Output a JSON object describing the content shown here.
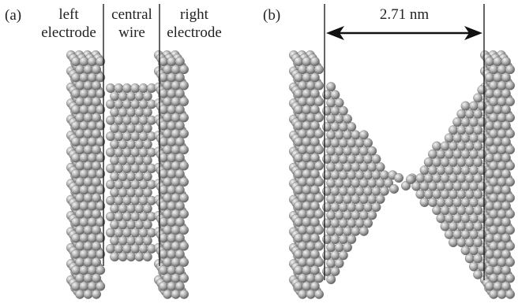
{
  "panel_a": {
    "tag": "(a)",
    "left_region": [
      "left",
      "electrode"
    ],
    "central_region": [
      "central",
      "wire"
    ],
    "right_region": [
      "right",
      "electrode"
    ]
  },
  "panel_b": {
    "tag": "(b)",
    "gap_label": "2.71 nm"
  },
  "colors": {
    "atom_light": "#f2f2f2",
    "atom_mid": "#a8a8a8",
    "atom_dark": "#5a5a5a",
    "line": "#111111"
  }
}
